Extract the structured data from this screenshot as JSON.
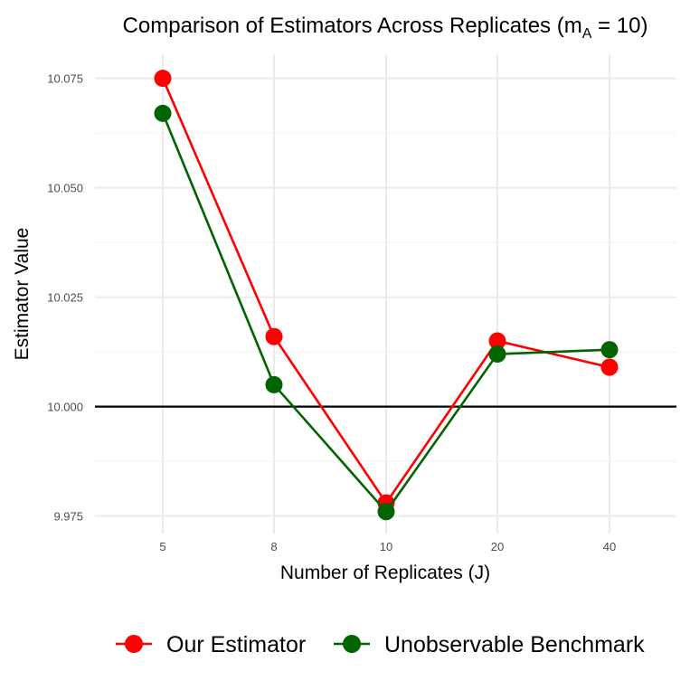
{
  "chart_data": {
    "type": "line",
    "title": "Comparison of Estimators Across Replicates (m",
    "title_sub": "A",
    "title_suffix": " = 10)",
    "xlabel": "Number of Replicates (J)",
    "ylabel": "Estimator Value",
    "categories": [
      "5",
      "8",
      "10",
      "20",
      "40"
    ],
    "y_ticks": [
      "9.975",
      "10.000",
      "10.025",
      "10.050",
      "10.075"
    ],
    "y_tick_values": [
      9.975,
      10.0,
      10.025,
      10.05,
      10.075
    ],
    "ylim": [
      9.971,
      10.0805
    ],
    "reference_line": 10.0,
    "grid": true,
    "legend_position": "bottom",
    "series": [
      {
        "name": "Our Estimator",
        "color": "#ff0000",
        "values": [
          10.075,
          10.016,
          9.978,
          10.015,
          10.009
        ]
      },
      {
        "name": "Unobservable Benchmark",
        "color": "#006400",
        "values": [
          10.067,
          10.005,
          9.976,
          10.012,
          10.013
        ]
      }
    ]
  }
}
